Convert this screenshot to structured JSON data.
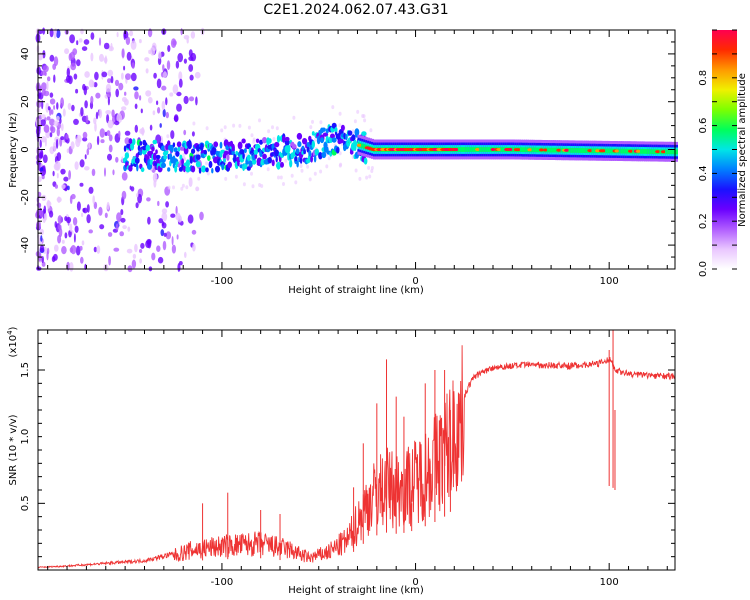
{
  "figure_title": "C2E1.2024.062.07.43.G31",
  "chart_data": [
    {
      "type": "heatmap",
      "title": "",
      "xlabel": "Height of straight line (km)",
      "ylabel": "Frequency (Hz)",
      "xlim": [
        -195,
        134
      ],
      "ylim": [
        -50,
        50
      ],
      "x_ticks": [
        -100,
        0,
        100
      ],
      "y_ticks": [
        -40,
        -20,
        0,
        20,
        40
      ],
      "colorbar": {
        "label": "Normalized spectral amplitude",
        "range": [
          0,
          1
        ],
        "ticks": [
          0.0,
          0.2,
          0.4,
          0.6,
          0.8
        ],
        "colors": [
          "#ffffff",
          "#e9c6ff",
          "#b05cff",
          "#6a00ff",
          "#1a12ff",
          "#0080ff",
          "#00e6e6",
          "#00ff5a",
          "#7dff00",
          "#f0f000",
          "#ff9a00",
          "#ff2a00",
          "#ff0050"
        ]
      },
      "trend": {
        "description": "scattered broadband noise below -130 km; band centred near 0 Hz rising to ~+5 Hz at -35 km; narrow strong line near 0 Hz above -25 km",
        "center_freq_points": [
          [
            -195,
            0
          ],
          [
            -130,
            -3
          ],
          [
            -100,
            -3
          ],
          [
            -60,
            0
          ],
          [
            -40,
            5
          ],
          [
            -30,
            2
          ],
          [
            -22,
            0
          ],
          [
            0,
            0
          ],
          [
            50,
            0
          ],
          [
            134,
            -1
          ]
        ]
      }
    },
    {
      "type": "line",
      "title": "",
      "xlabel": "Height of straight line (km)",
      "ylabel": "SNR (10 * v/v)",
      "y_multiplier_label": "(x10",
      "y_multiplier_exp": "4",
      "xlim": [
        -195,
        134
      ],
      "ylim": [
        0,
        1.8
      ],
      "x_ticks": [
        -100,
        0,
        100
      ],
      "y_ticks": [
        0.5,
        1.0,
        1.5
      ],
      "y_tick_labels": [
        "0.5",
        "1.0",
        "1.5"
      ],
      "series": [
        {
          "name": "SNR",
          "color": "#ee3333",
          "envelope_points": [
            [
              -195,
              0.02
            ],
            [
              -180,
              0.03
            ],
            [
              -160,
              0.05
            ],
            [
              -140,
              0.07
            ],
            [
              -125,
              0.12
            ],
            [
              -115,
              0.17
            ],
            [
              -100,
              0.2
            ],
            [
              -80,
              0.22
            ],
            [
              -65,
              0.17
            ],
            [
              -55,
              0.1
            ],
            [
              -45,
              0.15
            ],
            [
              -35,
              0.25
            ],
            [
              -30,
              0.4
            ],
            [
              -25,
              0.55
            ],
            [
              -20,
              0.65
            ],
            [
              -15,
              0.7
            ],
            [
              -10,
              0.68
            ],
            [
              -5,
              0.7
            ],
            [
              0,
              0.75
            ],
            [
              5,
              0.82
            ],
            [
              10,
              0.9
            ],
            [
              15,
              1.0
            ],
            [
              20,
              1.15
            ],
            [
              25,
              1.3
            ],
            [
              30,
              1.45
            ],
            [
              40,
              1.52
            ],
            [
              60,
              1.54
            ],
            [
              80,
              1.53
            ],
            [
              95,
              1.55
            ],
            [
              101,
              1.58
            ],
            [
              103,
              1.5
            ],
            [
              110,
              1.47
            ],
            [
              134,
              1.45
            ]
          ],
          "spikes": [
            [
              -110,
              0.5
            ],
            [
              -97,
              0.58
            ],
            [
              -80,
              0.45
            ],
            [
              -70,
              0.42
            ],
            [
              -32,
              0.62
            ],
            [
              -27,
              0.95
            ],
            [
              -20,
              1.25
            ],
            [
              -15,
              1.58
            ],
            [
              -10,
              1.3
            ],
            [
              -6,
              1.15
            ],
            [
              -2,
              0.5
            ],
            [
              5,
              1.4
            ],
            [
              10,
              1.5
            ],
            [
              15,
              1.5
            ],
            [
              18,
              1.2
            ],
            [
              100,
              1.65
            ],
            [
              102,
              1.8
            ],
            [
              103,
              1.2
            ]
          ]
        }
      ]
    }
  ]
}
